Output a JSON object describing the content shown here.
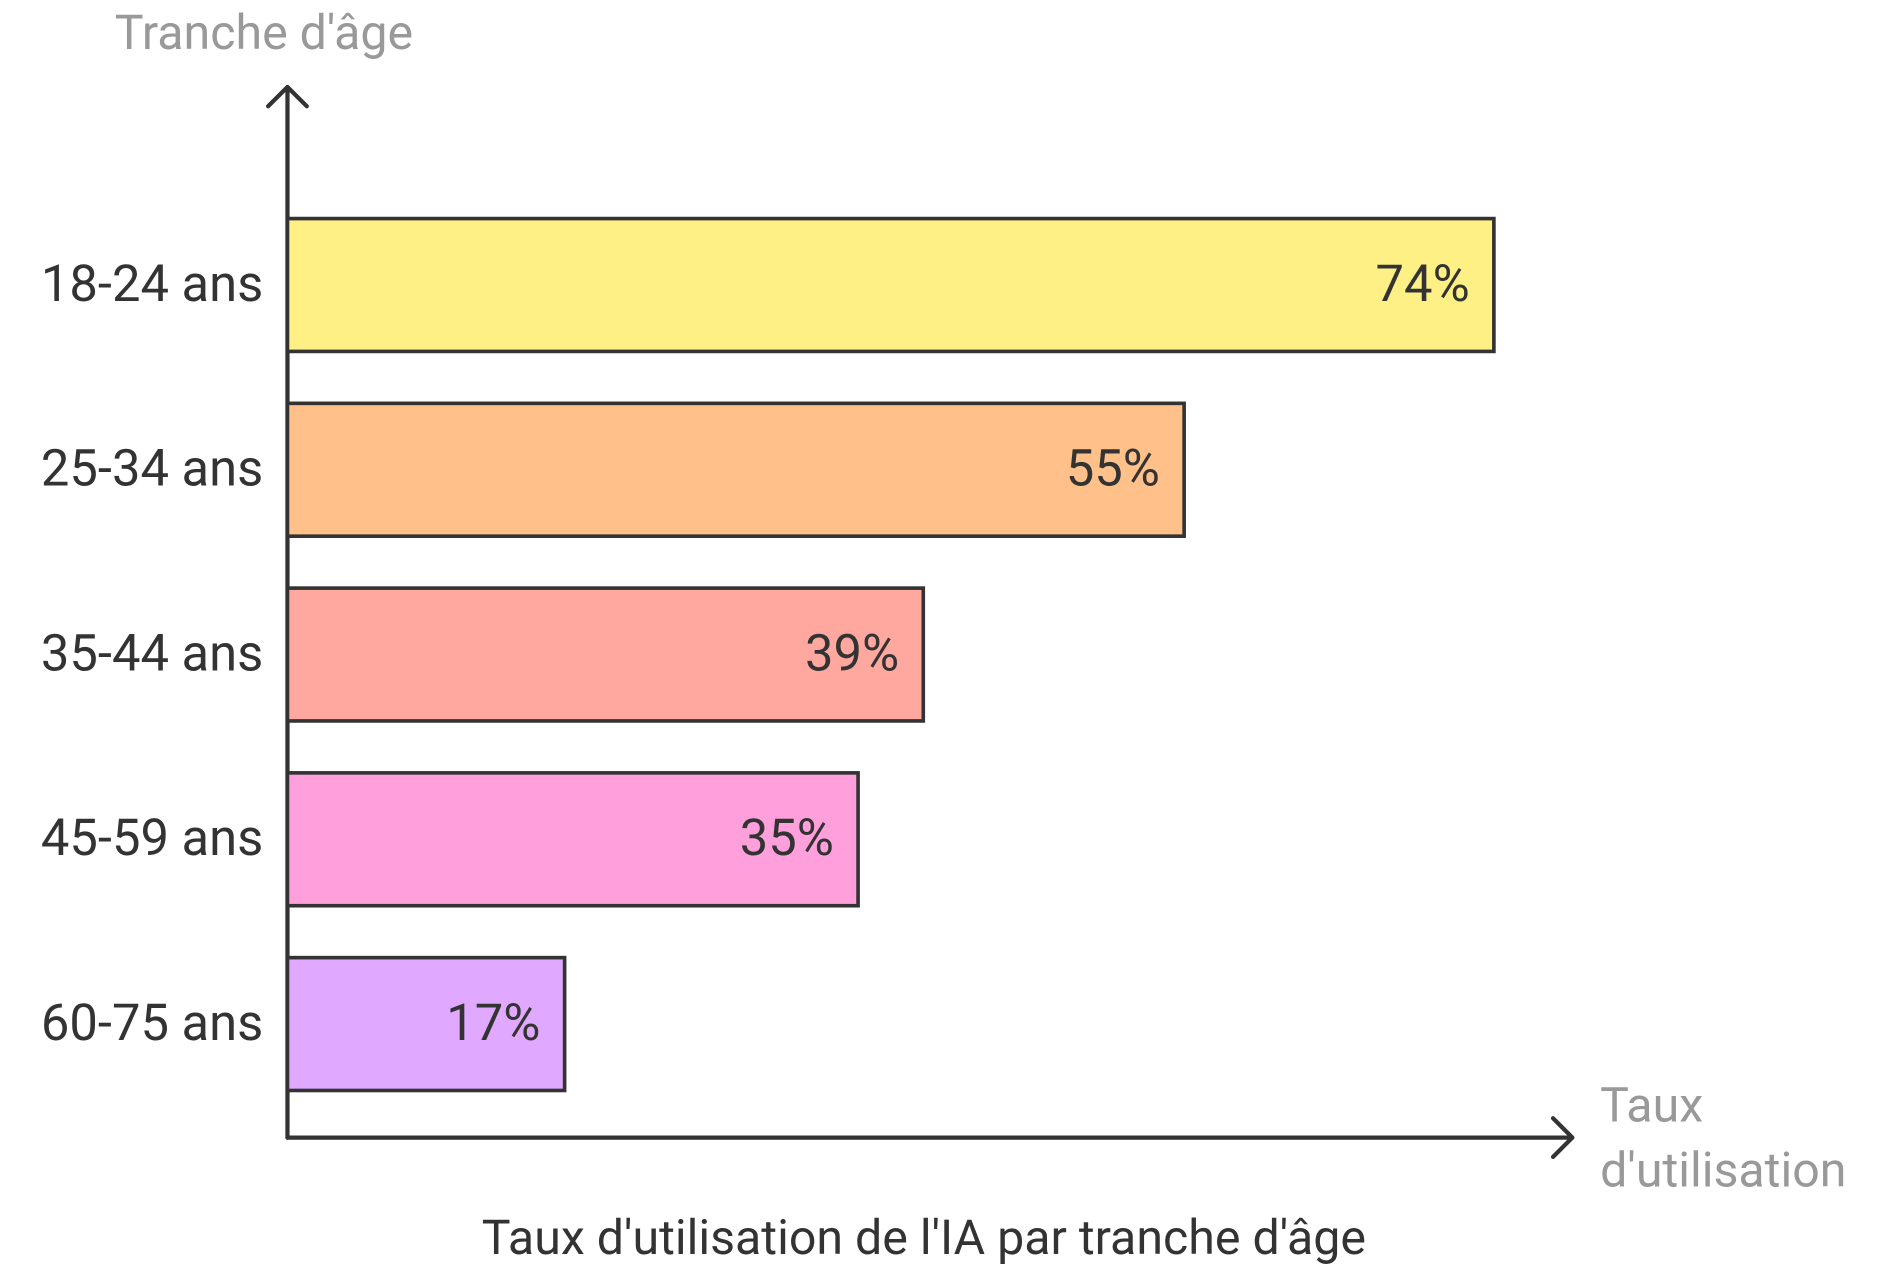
{
  "chart_data": {
    "type": "bar",
    "orientation": "horizontal",
    "title": "Taux d'utilisation de l'IA par tranche d'âge",
    "y_label": "Tranche d'âge",
    "x_label": [
      "Taux",
      "d'utilisation"
    ],
    "categories": [
      "18-24 ans",
      "25-34 ans",
      "35-44 ans",
      "45-59 ans",
      "60-75 ans"
    ],
    "values": [
      74,
      55,
      39,
      35,
      17
    ],
    "value_labels": [
      "74%",
      "55%",
      "39%",
      "35%",
      "17%"
    ],
    "colors": [
      "#fff085",
      "#ffc08a",
      "#ffa8a0",
      "#ffa0dc",
      "#e0a8ff"
    ]
  }
}
